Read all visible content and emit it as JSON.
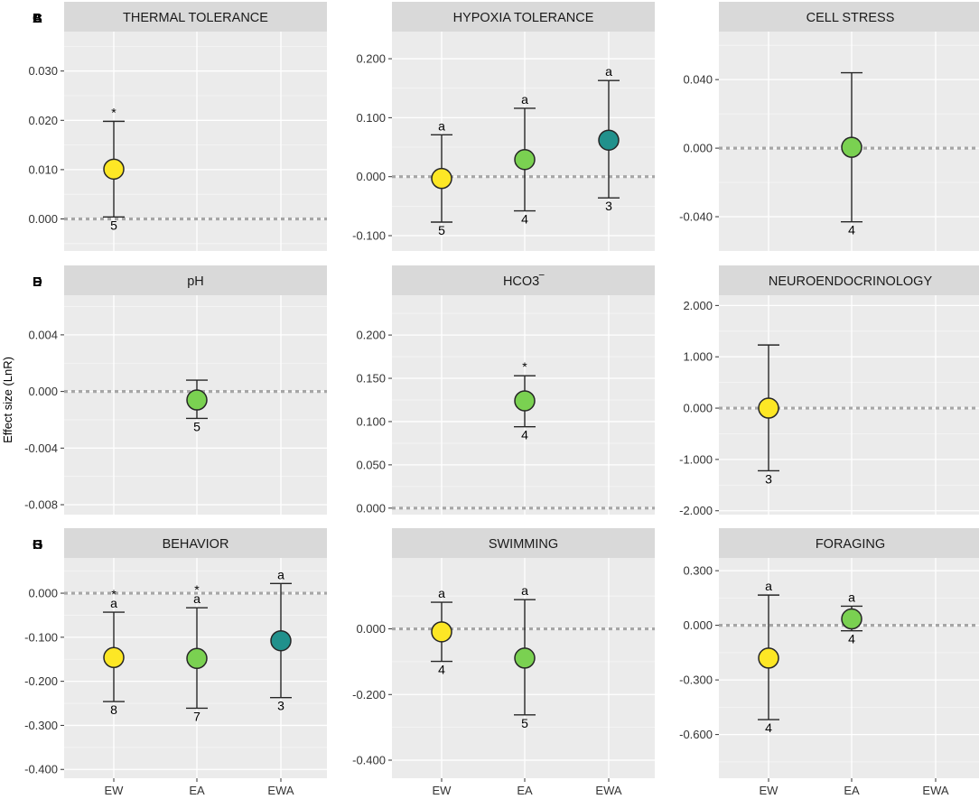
{
  "figure": {
    "y_axis_label": "Effect size (LnR)",
    "x_categories": [
      "EW",
      "EA",
      "EWA"
    ],
    "colors": {
      "EW": "#fde725",
      "EA": "#7ad151",
      "EWA": "#21918c",
      "panel_background": "#ebebeb",
      "strip_background": "#d9d9d9",
      "zero_line": "#a6a6a6"
    }
  },
  "chart_data": [
    {
      "panel": "A",
      "title": "THERMAL TOLERANCE",
      "type": "scatter",
      "ylim": [
        -0.0065,
        0.038
      ],
      "yticks": [
        0.0,
        0.01,
        0.02,
        0.03
      ],
      "ytick_labels": [
        "0.000",
        "0.010",
        "0.020",
        "0.030"
      ],
      "points": [
        {
          "group": "EW",
          "estimate": 0.0101,
          "ci_low": 0.0004,
          "ci_high": 0.0198,
          "n": "5",
          "upper_label": "*"
        }
      ]
    },
    {
      "panel": "D",
      "title": "pH",
      "type": "scatter",
      "ylim": [
        -0.0087,
        0.0068
      ],
      "yticks": [
        -0.008,
        -0.004,
        0.0,
        0.004
      ],
      "ytick_labels": [
        "-0.008",
        "-0.004",
        "0.000",
        "0.004"
      ],
      "points": [
        {
          "group": "EA",
          "estimate": -0.0006,
          "ci_low": -0.0019,
          "ci_high": 0.0008,
          "n": "5",
          "upper_label": ""
        }
      ]
    },
    {
      "panel": "G",
      "title": "BEHAVIOR",
      "type": "scatter",
      "ylim": [
        -0.42,
        0.08
      ],
      "yticks": [
        -0.4,
        -0.3,
        -0.2,
        -0.1,
        0.0
      ],
      "ytick_labels": [
        "-0.400",
        "-0.300",
        "-0.200",
        "-0.100",
        "0.000"
      ],
      "points": [
        {
          "group": "EW",
          "estimate": -0.146,
          "ci_low": -0.246,
          "ci_high": -0.043,
          "n": "8",
          "upper_label": "a",
          "star": "*"
        },
        {
          "group": "EA",
          "estimate": -0.148,
          "ci_low": -0.261,
          "ci_high": -0.033,
          "n": "7",
          "upper_label": "a",
          "star": "*"
        },
        {
          "group": "EWA",
          "estimate": -0.108,
          "ci_low": -0.237,
          "ci_high": 0.022,
          "n": "3",
          "upper_label": "a"
        }
      ]
    },
    {
      "panel": "B",
      "title": "HYPOXIA TOLERANCE",
      "type": "scatter",
      "ylim": [
        -0.126,
        0.246
      ],
      "yticks": [
        -0.1,
        0.0,
        0.1,
        0.2
      ],
      "ytick_labels": [
        "-0.100",
        "0.000",
        "0.100",
        "0.200"
      ],
      "points": [
        {
          "group": "EW",
          "estimate": -0.003,
          "ci_low": -0.077,
          "ci_high": 0.071,
          "n": "5",
          "upper_label": "a"
        },
        {
          "group": "EA",
          "estimate": 0.029,
          "ci_low": -0.058,
          "ci_high": 0.116,
          "n": "4",
          "upper_label": "a"
        },
        {
          "group": "EWA",
          "estimate": 0.062,
          "ci_low": -0.036,
          "ci_high": 0.163,
          "n": "3",
          "upper_label": "a"
        }
      ]
    },
    {
      "panel": "E",
      "title": "HCO3‾",
      "type": "scatter",
      "ylim": [
        -0.0075,
        0.246
      ],
      "yticks": [
        0.0,
        0.05,
        0.1,
        0.15,
        0.2
      ],
      "ytick_labels": [
        "0.000",
        "0.050",
        "0.100",
        "0.150",
        "0.200"
      ],
      "points": [
        {
          "group": "EA",
          "estimate": 0.124,
          "ci_low": 0.094,
          "ci_high": 0.153,
          "n": "4",
          "upper_label": "*"
        }
      ]
    },
    {
      "panel": "H",
      "title": "SWIMMING",
      "type": "scatter",
      "ylim": [
        -0.455,
        0.216
      ],
      "yticks": [
        -0.4,
        -0.2,
        0.0
      ],
      "ytick_labels": [
        "-0.400",
        "-0.200",
        "0.000"
      ],
      "points": [
        {
          "group": "EW",
          "estimate": -0.009,
          "ci_low": -0.099,
          "ci_high": 0.081,
          "n": "4",
          "upper_label": "a"
        },
        {
          "group": "EA",
          "estimate": -0.089,
          "ci_low": -0.262,
          "ci_high": 0.089,
          "n": "5",
          "upper_label": "a"
        }
      ]
    },
    {
      "panel": "C",
      "title": "CELL STRESS",
      "type": "scatter",
      "ylim": [
        -0.06,
        0.068
      ],
      "yticks": [
        -0.04,
        0.0,
        0.04
      ],
      "ytick_labels": [
        "-0.040",
        "0.000",
        "0.040"
      ],
      "points": [
        {
          "group": "EA",
          "estimate": 0.0005,
          "ci_low": -0.043,
          "ci_high": 0.044,
          "n": "4",
          "upper_label": ""
        }
      ]
    },
    {
      "panel": "F",
      "title": "NEUROENDOCRINOLOGY",
      "type": "scatter",
      "ylim": [
        -2.075,
        2.2
      ],
      "yticks": [
        -2.0,
        -1.0,
        0.0,
        1.0,
        2.0
      ],
      "ytick_labels": [
        "-2.000",
        "-1.000",
        "0.000",
        "1.000",
        "2.000"
      ],
      "points": [
        {
          "group": "EW",
          "estimate": 0.0,
          "ci_low": -1.22,
          "ci_high": 1.23,
          "n": "3",
          "upper_label": ""
        }
      ]
    },
    {
      "panel": "I",
      "title": "FORAGING",
      "type": "scatter",
      "ylim": [
        -0.84,
        0.37
      ],
      "yticks": [
        -0.6,
        -0.3,
        0.0,
        0.3
      ],
      "ytick_labels": [
        "-0.600",
        "-0.300",
        "0.000",
        "0.300"
      ],
      "points": [
        {
          "group": "EW",
          "estimate": -0.18,
          "ci_low": -0.518,
          "ci_high": 0.166,
          "n": "4",
          "upper_label": "a"
        },
        {
          "group": "EA",
          "estimate": 0.035,
          "ci_low": -0.03,
          "ci_high": 0.105,
          "n": "4",
          "upper_label": "a"
        }
      ]
    }
  ]
}
